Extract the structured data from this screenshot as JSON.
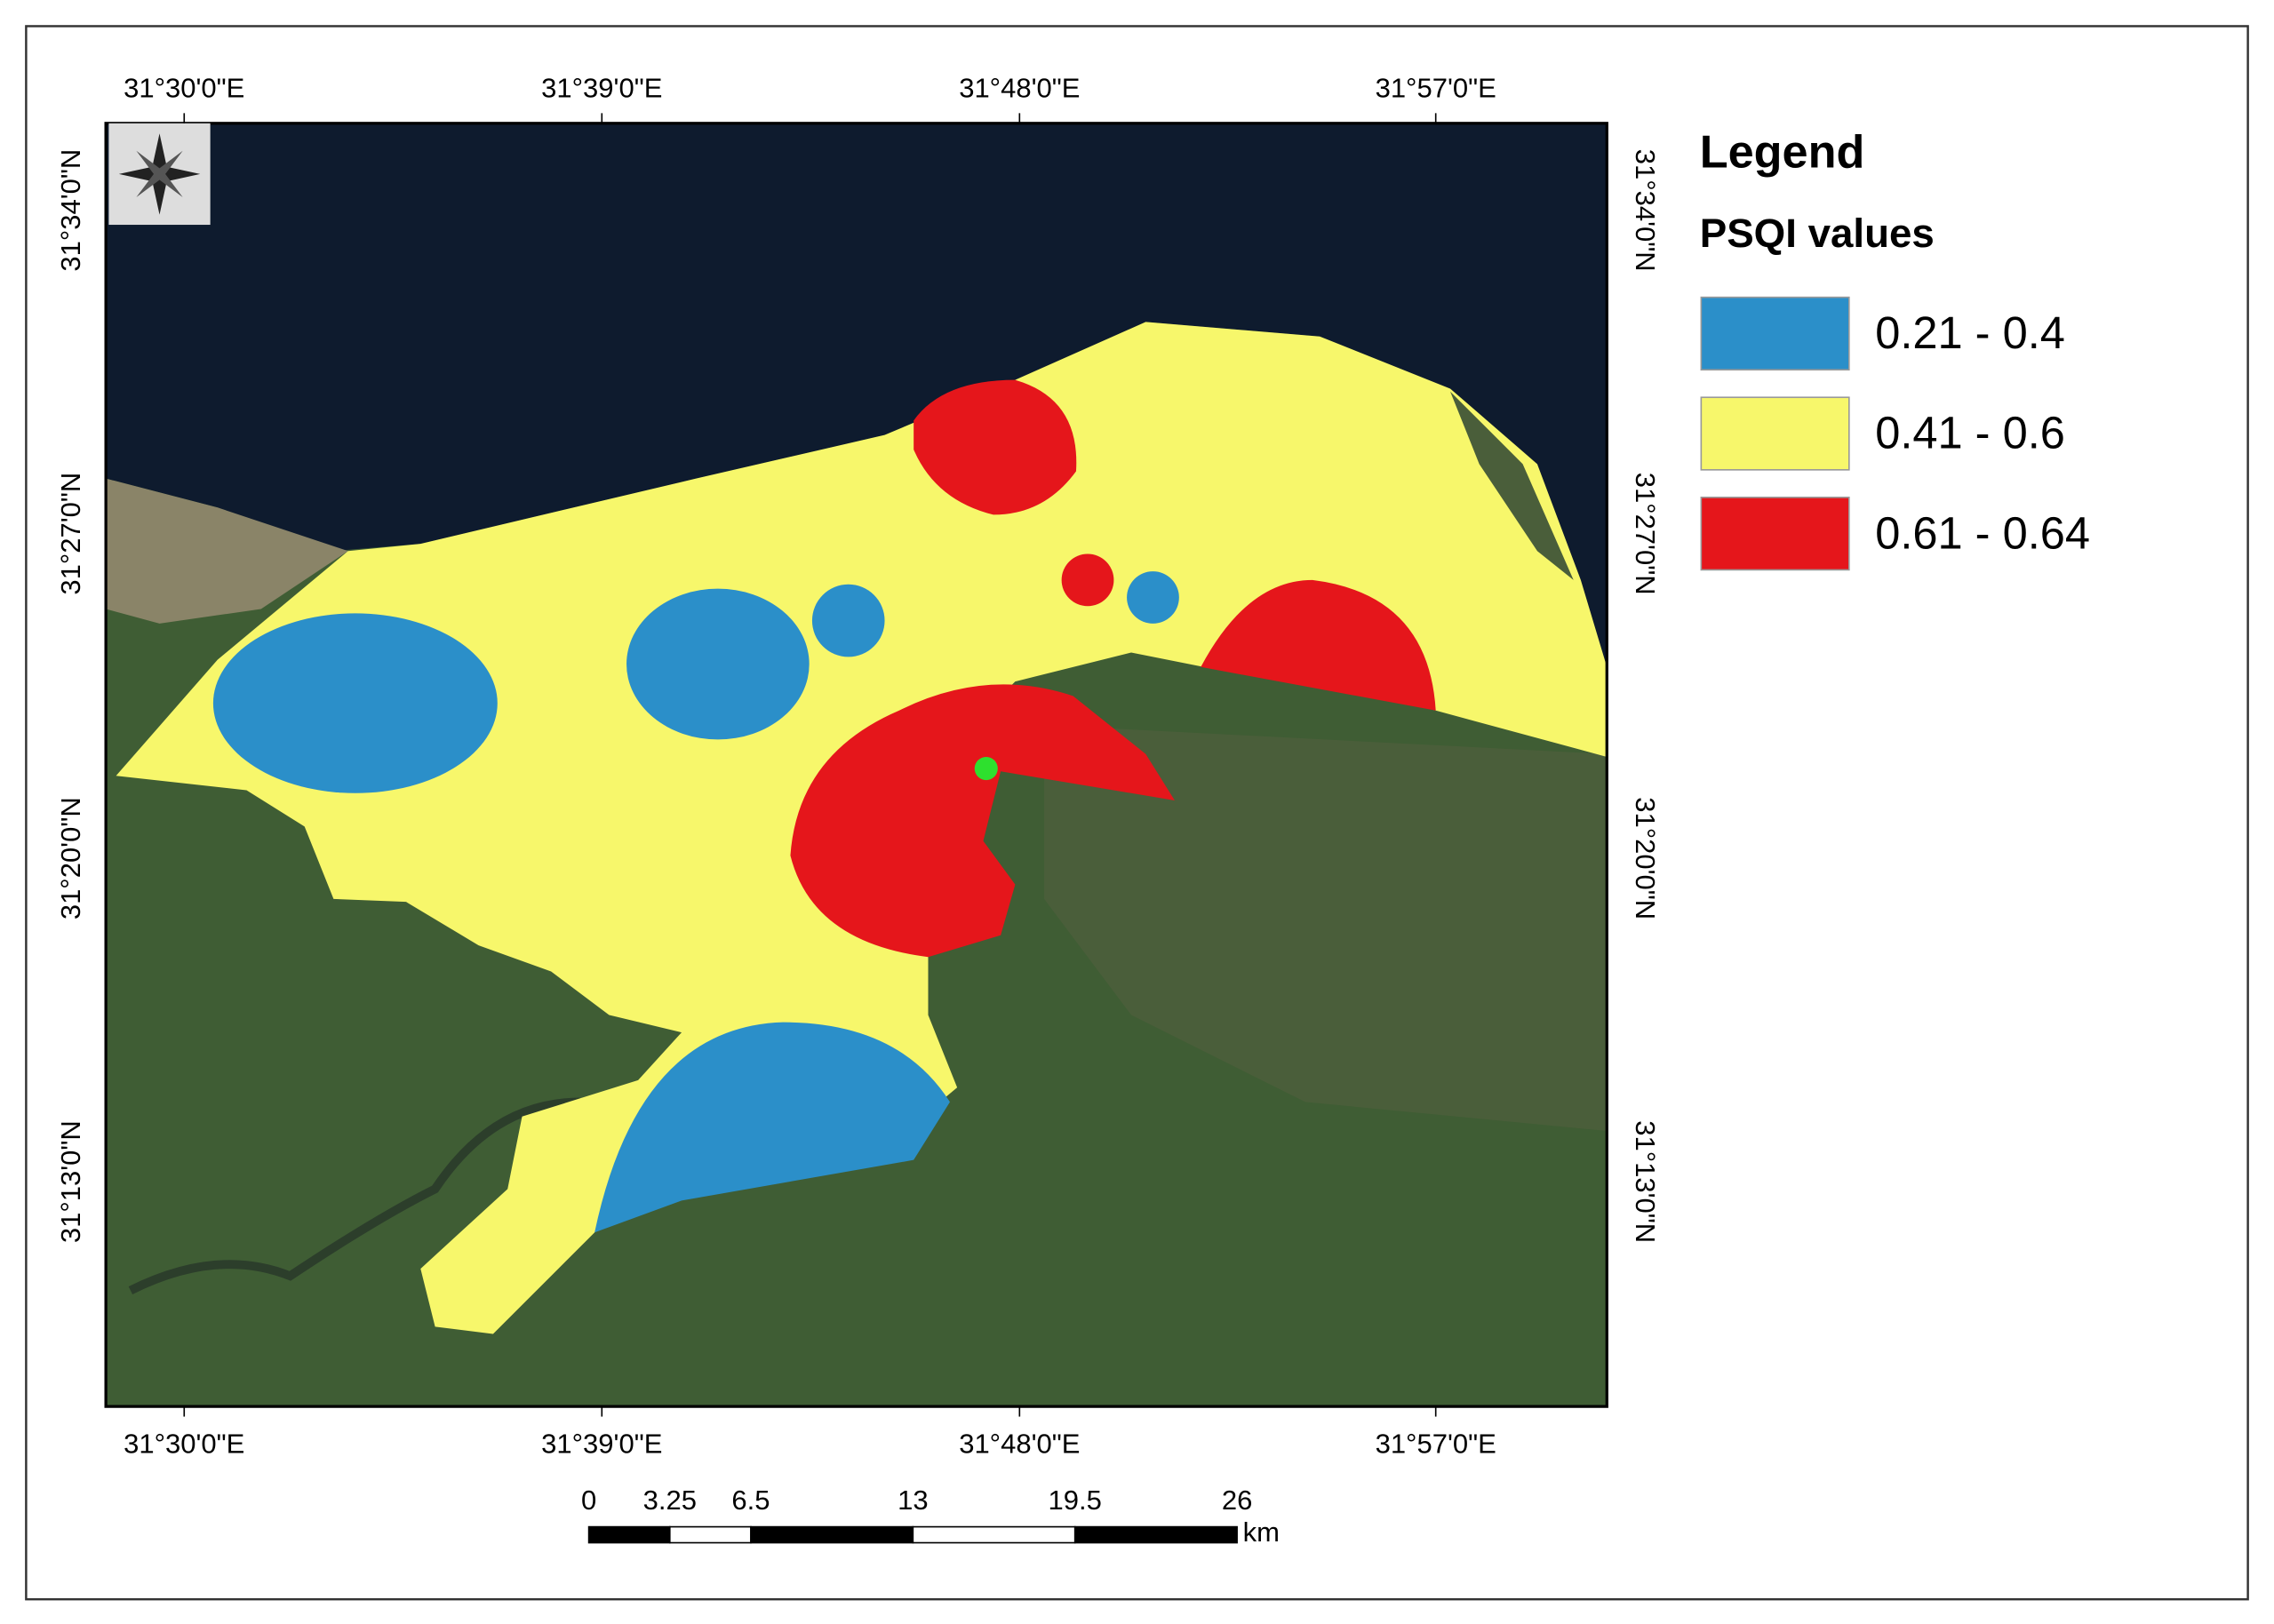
{
  "map": {
    "top_labels": [
      "31°30'0\"E",
      "31°39'0\"E",
      "31°48'0\"E",
      "31°57'0\"E"
    ],
    "bottom_labels": [
      "31°30'0\"E",
      "31°39'0\"E",
      "31°48'0\"E",
      "31°57'0\"E"
    ],
    "left_labels": [
      "31°34'0\"N",
      "31°27'0\"N",
      "31°20'0\"N",
      "31°13'0\"N"
    ],
    "right_labels": [
      "31°34'0\"N",
      "31°27'0\"N",
      "31°20'0\"N",
      "31°13'0\"N"
    ],
    "legend": {
      "title": "Legend",
      "subtitle": "PSQI values",
      "classes": [
        {
          "label": "0.21 - 0.4",
          "color": "#2b8fc9"
        },
        {
          "label": "0.41 - 0.6",
          "color": "#f7f76b"
        },
        {
          "label": "0.61 - 0.64",
          "color": "#e5161b"
        }
      ]
    },
    "scale_bar": {
      "ticks": [
        0,
        3.25,
        6.5,
        13,
        19.5,
        26
      ],
      "unit": "km"
    }
  }
}
